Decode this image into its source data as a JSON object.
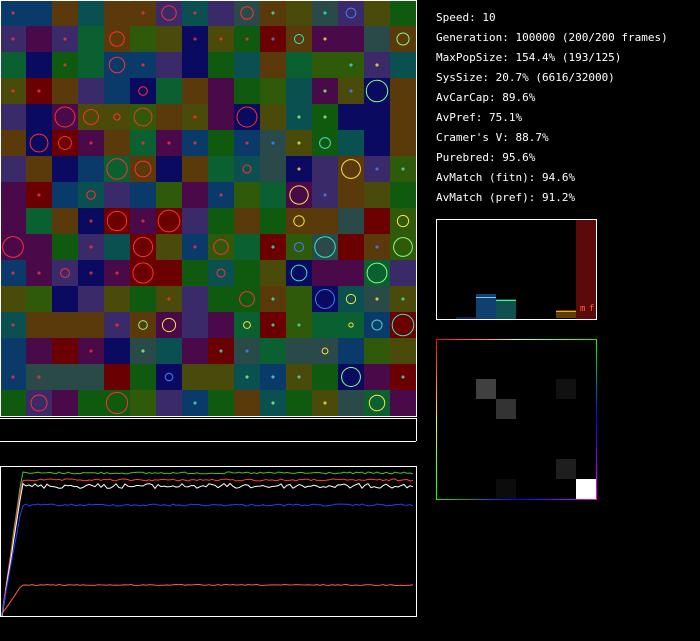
{
  "stats": [
    "Speed: 10",
    "Generation: 100000 (200/200 frames)",
    "MaxPopSize: 154.4% (193/125)",
    "SysSize: 20.7% (6616/32000)",
    "AvCarCap: 89.6%",
    "AvPref: 75.1%",
    "Cramer's V: 88.7%",
    "Purebred: 95.6%",
    "AvMatch (fitn): 94.6%",
    "AvMatch (pref): 91.2%"
  ],
  "bar_labels": [
    "m",
    "f"
  ]
}
